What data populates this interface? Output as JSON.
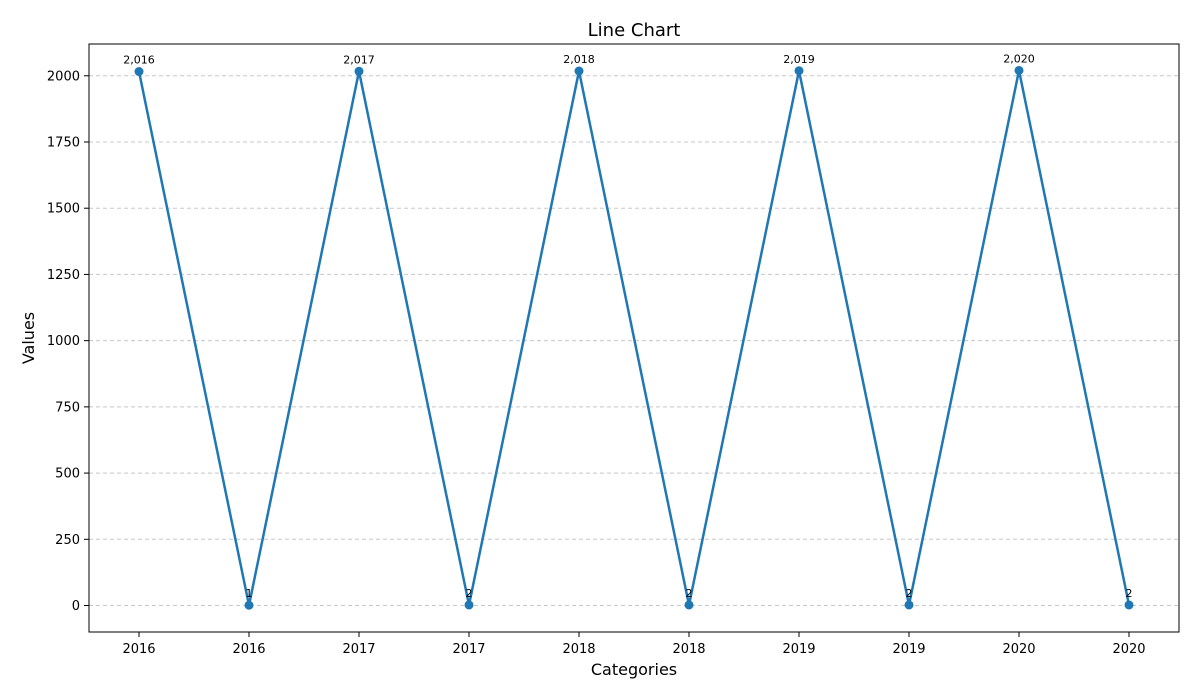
{
  "chart_data": {
    "type": "line",
    "title": "Line Chart",
    "xlabel": "Categories",
    "ylabel": "Values",
    "categories": [
      "2016",
      "2016",
      "2017",
      "2017",
      "2018",
      "2018",
      "2019",
      "2019",
      "2020",
      "2020"
    ],
    "series": [
      {
        "values": [
          2016,
          1,
          2017,
          2,
          2018,
          2,
          2019,
          2,
          2020,
          2
        ],
        "data_labels": [
          "2,016",
          "1",
          "2,017",
          "2",
          "2,018",
          "2",
          "2,019",
          "2",
          "2,020",
          "2"
        ],
        "color": "#1f77b4"
      }
    ],
    "ylim": [
      -100,
      2120
    ],
    "yticks": [
      0,
      250,
      500,
      750,
      1000,
      1250,
      1500,
      1750,
      2000
    ],
    "ytick_labels": [
      "0",
      "250",
      "500",
      "750",
      "1000",
      "1250",
      "1500",
      "1750",
      "2000"
    ],
    "grid": "y-axis dashed",
    "marker": "circle"
  }
}
